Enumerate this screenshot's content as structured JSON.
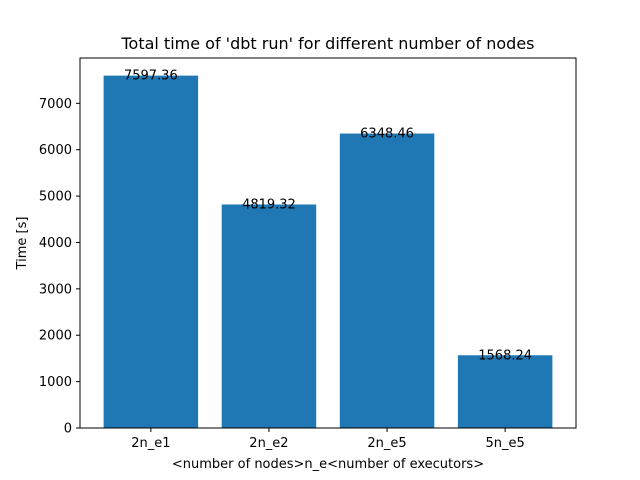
{
  "chart_data": {
    "type": "bar",
    "title": "Total time of 'dbt run' for different number of nodes",
    "xlabel": "<number of nodes>n_e<number of executors>",
    "ylabel": "Time [s]",
    "categories": [
      "2n_e1",
      "2n_e2",
      "2n_e5",
      "5n_e5"
    ],
    "values": [
      7597.36,
      4819.32,
      6348.46,
      1568.24
    ],
    "data_labels": [
      "7597.36",
      "4819.32",
      "6348.46",
      "1568.24"
    ],
    "yticks": [
      0,
      1000,
      2000,
      3000,
      4000,
      5000,
      6000,
      7000
    ],
    "ylim": [
      0,
      7977.2
    ],
    "grid": false,
    "legend": "none",
    "bar_color": "#1f77b4"
  }
}
